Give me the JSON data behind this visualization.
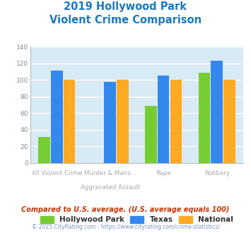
{
  "title_line1": "2019 Hollywood Park",
  "title_line2": "Violent Crime Comparison",
  "title_color": "#1a7abf",
  "hollywood_park": [
    31,
    null,
    69,
    109
  ],
  "texas": [
    111,
    98,
    105,
    123
  ],
  "national": [
    100,
    100,
    100,
    100
  ],
  "color_hp": "#77cc33",
  "color_tx": "#3388ee",
  "color_nat": "#ffaa22",
  "ylim": [
    0,
    140
  ],
  "yticks": [
    0,
    20,
    40,
    60,
    80,
    100,
    120,
    140
  ],
  "bg_color": "#d8eaf4",
  "legend_labels": [
    "Hollywood Park",
    "Texas",
    "National"
  ],
  "cat_top": [
    "",
    "Murder & Mans...",
    "",
    ""
  ],
  "cat_bot": [
    "All Violent Crime",
    "Aggravated Assault",
    "Rape",
    "Robbery"
  ],
  "footnote1": "Compared to U.S. average. (U.S. average equals 100)",
  "footnote2": "© 2025 CityRating.com - https://www.cityrating.com/crime-statistics/",
  "footnote1_color": "#cc3300",
  "footnote2_color": "#7799bb"
}
